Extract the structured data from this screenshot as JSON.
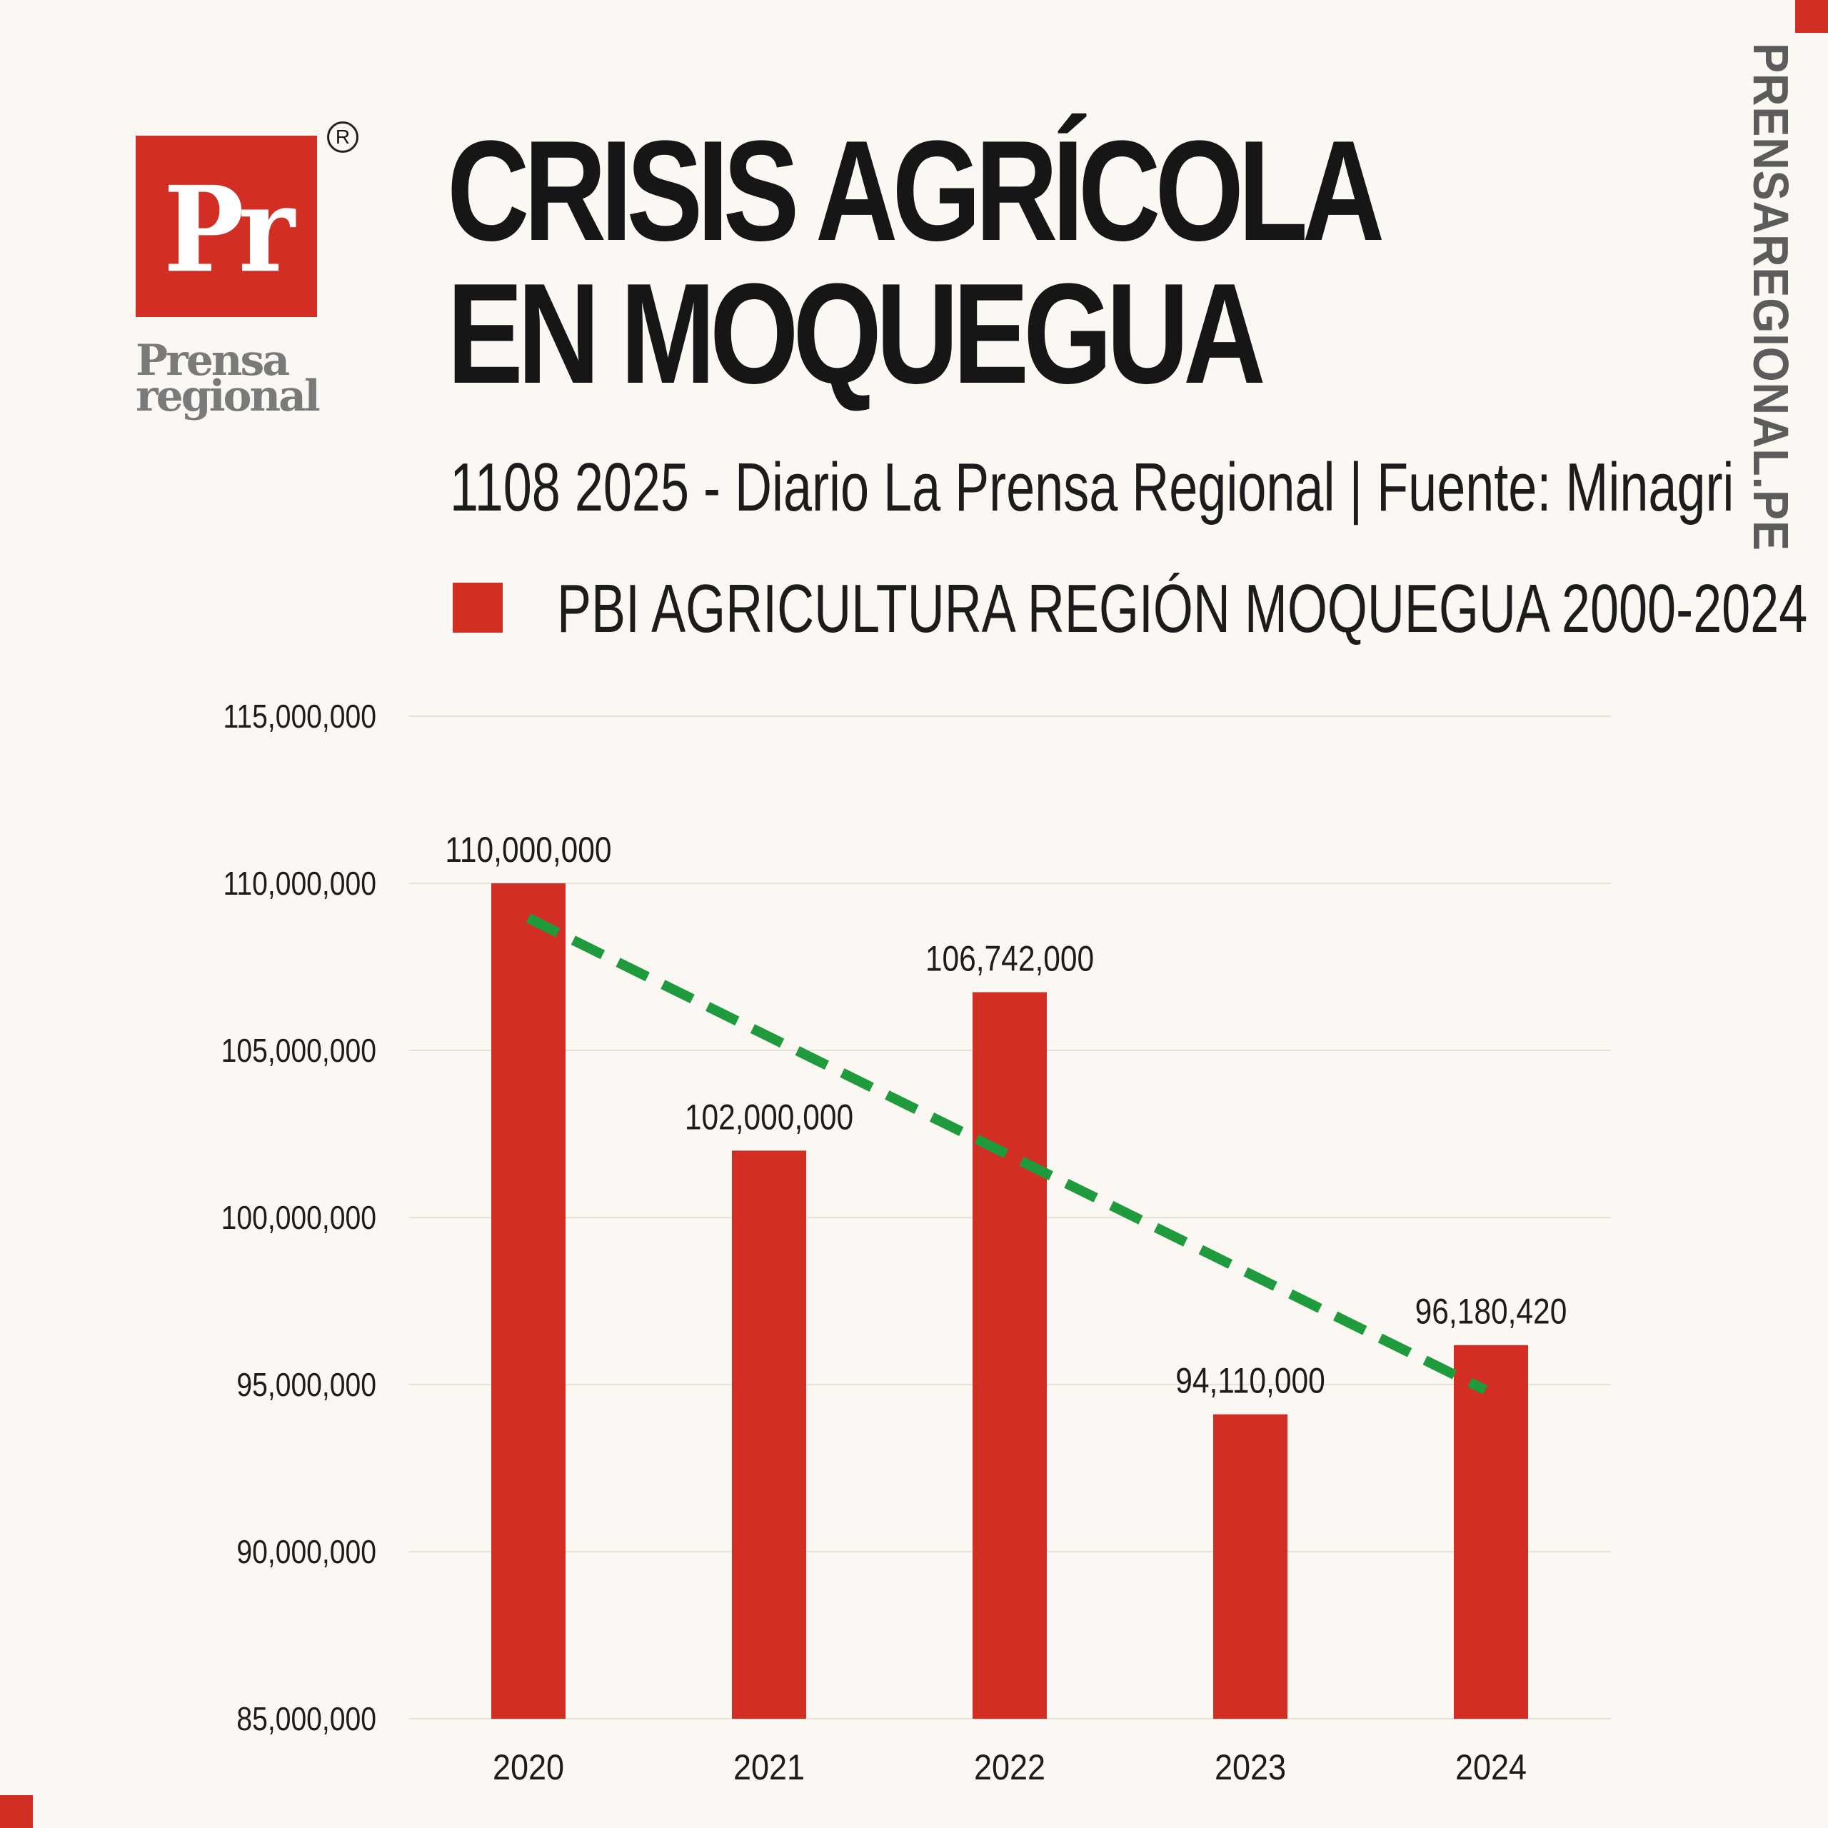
{
  "brand": {
    "logo_mark": "Pr",
    "logo_word_line1": "Prensa",
    "logo_word_line2": "regional",
    "registered": "R",
    "side_url": "PRENSAREGIONAL.PE",
    "colors": {
      "accent": "#d22e23",
      "trend": "#1f9a3c",
      "background": "#fbf7f2"
    }
  },
  "header": {
    "title_line1": "CRISIS AGRÍCOLA",
    "title_line2": "EN MOQUEGUA",
    "subtitle": "1108 2025 - Diario La Prensa Regional | Fuente: Minagri"
  },
  "chart_data": {
    "type": "bar",
    "categories": [
      "2020",
      "2021",
      "2022",
      "2023",
      "2024"
    ],
    "series": [
      {
        "name": "PBI AGRICULTURA  REGIÓN MOQUEGUA 2000-2024",
        "values": [
          110000000,
          102000000,
          106742000,
          94110000,
          96180420
        ],
        "labels": [
          "110,000,000",
          "102,000,000",
          "106,742,000",
          "94,110,000",
          "96,180,420"
        ],
        "color": "#d22e23"
      }
    ],
    "trendline": {
      "style": "dashed",
      "color": "#1f9a3c",
      "start": 108960000,
      "end": 94840000
    },
    "ylim": [
      85000000,
      115000000
    ],
    "yticks": [
      85000000,
      90000000,
      95000000,
      100000000,
      105000000,
      110000000,
      115000000
    ],
    "ytick_labels": [
      "85,000,000",
      "90,000,000",
      "95,000,000",
      "100,000,000",
      "105,000,000",
      "110,000,000",
      "115,000,000"
    ],
    "grid": true,
    "legend_position": "top-left",
    "xlabel": "",
    "ylabel": ""
  }
}
